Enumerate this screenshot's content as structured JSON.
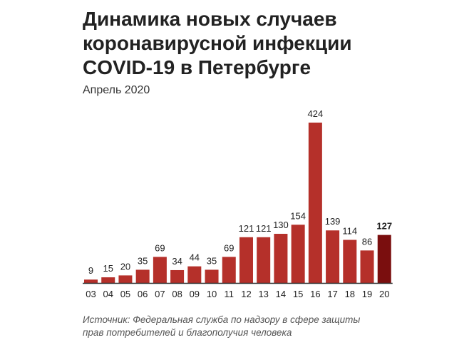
{
  "title_lines": [
    "Динамика новых случаев",
    "коронавирусной инфекции",
    "COVID-19 в Петербурге"
  ],
  "subtitle": "Апрель 2020",
  "source_lines": [
    "Источник: Федеральная служба по надзору в сфере защиты",
    "прав потребителей и благополучия человека"
  ],
  "colors": {
    "bar": "#b5302a",
    "highlight_bar": "#7a0e0e",
    "baseline": "#333333"
  },
  "chart_data": {
    "type": "bar",
    "title": "Динамика новых случаев коронавирусной инфекции COVID-19 в Петербурге",
    "subtitle": "Апрель 2020",
    "categories": [
      "03",
      "04",
      "05",
      "06",
      "07",
      "08",
      "09",
      "10",
      "11",
      "12",
      "13",
      "14",
      "15",
      "16",
      "17",
      "18",
      "19",
      "20"
    ],
    "values": [
      9,
      15,
      20,
      35,
      69,
      34,
      44,
      35,
      69,
      121,
      121,
      130,
      154,
      424,
      139,
      114,
      86,
      127
    ],
    "highlight_index": 17,
    "ylim": [
      0,
      424
    ],
    "grid": false,
    "legend": "none",
    "xlabel": "",
    "ylabel": ""
  }
}
